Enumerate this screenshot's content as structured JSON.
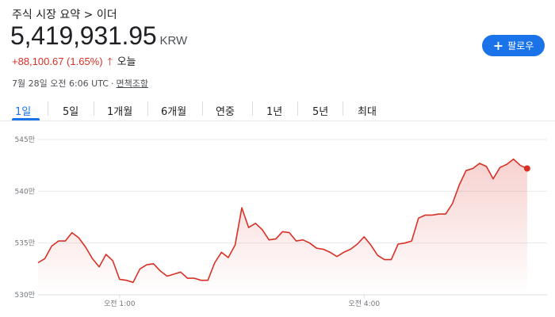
{
  "breadcrumb": {
    "summary": "주식 시장 요약",
    "separator": " > ",
    "current": "이더"
  },
  "quote": {
    "price": "5,419,931.95",
    "currency": "KRW",
    "change": "+88,100.67 (1.65%)",
    "direction": "up",
    "period": "오늘"
  },
  "follow_button": {
    "label": "팔로우"
  },
  "timestamp": {
    "text": "7월 28일 오전 6:06 UTC",
    "separator": "·",
    "disclaimer": "면책조항"
  },
  "tabs": [
    {
      "label": "1일",
      "active": true
    },
    {
      "label": "5일",
      "active": false
    },
    {
      "label": "1개월",
      "active": false
    },
    {
      "label": "6개월",
      "active": false
    },
    {
      "label": "연중",
      "active": false
    },
    {
      "label": "1년",
      "active": false
    },
    {
      "label": "5년",
      "active": false
    },
    {
      "label": "최대",
      "active": false
    }
  ],
  "colors": {
    "up": "#d93025",
    "accent": "#1a73e8"
  },
  "chart_data": {
    "type": "area",
    "y_tick_labels": [
      "545만",
      "540만",
      "535만",
      "530만"
    ],
    "y_ticks": [
      5450000,
      5400000,
      5350000,
      5300000
    ],
    "ylim": [
      5300000,
      5450000
    ],
    "x_tick_labels": [
      "오전 1:00",
      "오전 4:00"
    ],
    "x_ticks": [
      60,
      240
    ],
    "xlim": [
      0,
      370
    ],
    "grid": true,
    "series": [
      {
        "values": [
          [
            0,
            5331000
          ],
          [
            5,
            5335000
          ],
          [
            10,
            5347000
          ],
          [
            15,
            5352000
          ],
          [
            20,
            5352000
          ],
          [
            25,
            5360000
          ],
          [
            30,
            5355000
          ],
          [
            35,
            5346000
          ],
          [
            40,
            5335000
          ],
          [
            45,
            5327000
          ],
          [
            50,
            5339000
          ],
          [
            55,
            5333000
          ],
          [
            60,
            5315000
          ],
          [
            65,
            5314000
          ],
          [
            70,
            5312000
          ],
          [
            75,
            5325000
          ],
          [
            80,
            5329000
          ],
          [
            85,
            5330000
          ],
          [
            90,
            5323000
          ],
          [
            95,
            5318000
          ],
          [
            100,
            5320000
          ],
          [
            105,
            5322000
          ],
          [
            110,
            5316000
          ],
          [
            115,
            5316000
          ],
          [
            120,
            5314000
          ],
          [
            125,
            5314000
          ],
          [
            130,
            5331000
          ],
          [
            135,
            5341000
          ],
          [
            140,
            5336000
          ],
          [
            145,
            5348000
          ],
          [
            150,
            5384000
          ],
          [
            155,
            5365000
          ],
          [
            160,
            5369000
          ],
          [
            165,
            5363000
          ],
          [
            170,
            5353000
          ],
          [
            175,
            5354000
          ],
          [
            180,
            5361000
          ],
          [
            185,
            5360000
          ],
          [
            190,
            5352000
          ],
          [
            195,
            5353000
          ],
          [
            200,
            5350000
          ],
          [
            205,
            5345000
          ],
          [
            210,
            5344000
          ],
          [
            215,
            5341000
          ],
          [
            220,
            5337000
          ],
          [
            225,
            5341000
          ],
          [
            230,
            5344000
          ],
          [
            235,
            5349000
          ],
          [
            240,
            5356000
          ],
          [
            245,
            5348000
          ],
          [
            250,
            5338000
          ],
          [
            255,
            5334000
          ],
          [
            260,
            5334000
          ],
          [
            265,
            5349000
          ],
          [
            270,
            5350000
          ],
          [
            275,
            5352000
          ],
          [
            280,
            5374000
          ],
          [
            285,
            5377000
          ],
          [
            290,
            5377000
          ],
          [
            295,
            5378000
          ],
          [
            300,
            5378000
          ],
          [
            305,
            5388000
          ],
          [
            310,
            5406000
          ],
          [
            315,
            5420000
          ],
          [
            320,
            5422000
          ],
          [
            325,
            5427000
          ],
          [
            330,
            5424000
          ],
          [
            335,
            5412000
          ],
          [
            340,
            5423000
          ],
          [
            345,
            5426000
          ],
          [
            350,
            5431000
          ],
          [
            355,
            5425000
          ],
          [
            360,
            5422000
          ]
        ]
      }
    ],
    "last_point_marker": true
  }
}
